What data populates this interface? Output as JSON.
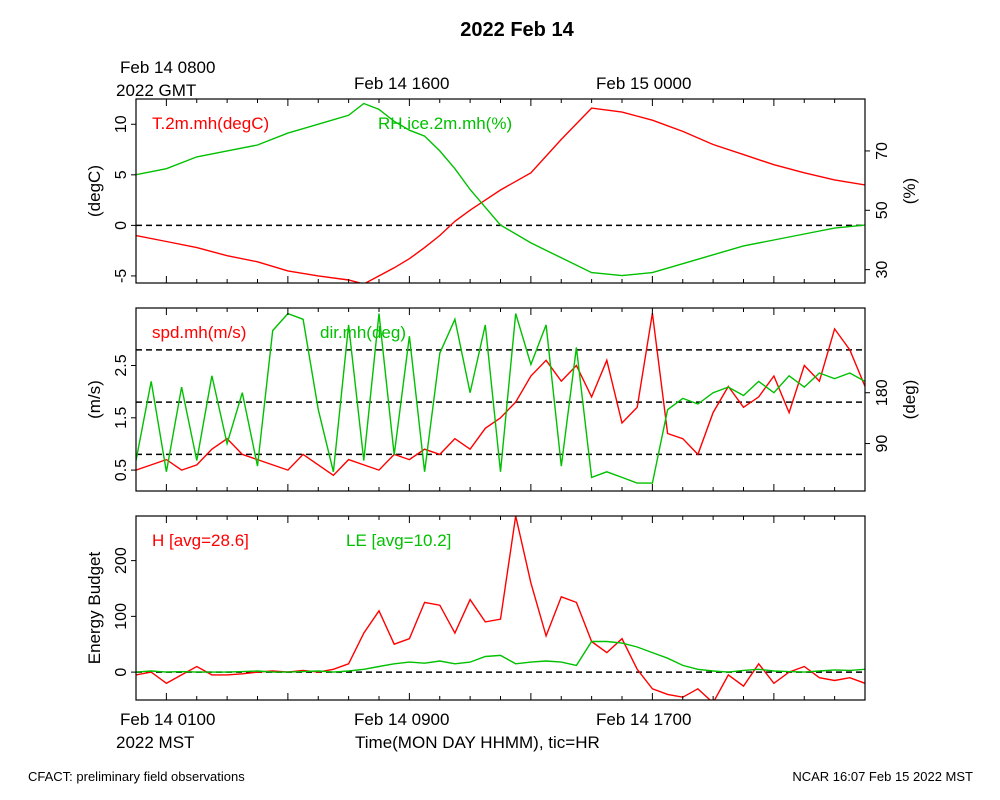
{
  "figure": {
    "title": "2022 Feb 14",
    "top_time_labels": [
      {
        "line1": "Feb 14 0800",
        "line2": "2022 GMT"
      },
      {
        "line1": "Feb 14 1600",
        "line2": ""
      },
      {
        "line1": "Feb 15 0000",
        "line2": ""
      }
    ],
    "bottom_time_labels": [
      {
        "line1": "Feb 14 0100",
        "line2": "2022 MST"
      },
      {
        "line1": "Feb 14 0900",
        "line2": ""
      },
      {
        "line1": "Feb 14 1700",
        "line2": ""
      }
    ],
    "xlabel": "Time(MON DAY HHMM), tic=HR",
    "footer_left": "CFACT: preliminary field observations",
    "footer_right": "NCAR 16:07 Feb 15 2022 MST",
    "colors": {
      "red": "#ff0000",
      "green": "#00c000",
      "black": "#000000"
    }
  },
  "chart_data": [
    {
      "type": "line",
      "xlim": [
        0,
        24
      ],
      "x_unit": "hours after Feb 14 0000 MST",
      "left_axis": {
        "label": "(degC)",
        "ylim": [
          -5.7,
          12.5
        ],
        "ticks": [
          -5,
          0,
          5,
          10
        ]
      },
      "right_axis": {
        "label": "(%)",
        "ylim": [
          25.5,
          87.5
        ],
        "ticks": [
          30,
          50,
          70
        ]
      },
      "reference_lines": [
        {
          "axis": "left",
          "value": 0
        }
      ],
      "series": [
        {
          "name": "T.2m.mh(degC)",
          "axis": "left",
          "color": "#ff0000",
          "x": [
            0,
            1,
            2,
            3,
            4,
            5,
            6,
            7,
            7.5,
            8,
            8.5,
            9,
            9.5,
            10,
            10.5,
            11,
            11.5,
            12,
            13,
            14,
            15,
            16,
            17,
            18,
            19,
            20,
            21,
            22,
            23,
            24
          ],
          "y": [
            -1,
            -1.6,
            -2.2,
            -3,
            -3.6,
            -4.5,
            -5,
            -5.4,
            -5.8,
            -5,
            -4.2,
            -3.3,
            -2.2,
            -1,
            0.4,
            1.5,
            2.5,
            3.5,
            5.2,
            8.5,
            11.6,
            11.2,
            10.4,
            9.3,
            8,
            7,
            6,
            5.2,
            4.5,
            4
          ]
        },
        {
          "name": "RH.ice.2m.mh(%)",
          "axis": "right",
          "color": "#00c000",
          "x": [
            0,
            1,
            2,
            3,
            4,
            5,
            6,
            7,
            7.5,
            8,
            8.5,
            9,
            9.5,
            10,
            10.5,
            11,
            11.5,
            12,
            13,
            14,
            15,
            16,
            17,
            18,
            19,
            20,
            21,
            22,
            23,
            24
          ],
          "y": [
            62,
            64,
            68,
            70,
            72,
            76,
            79,
            82,
            86,
            84,
            80,
            77,
            75,
            70,
            64,
            57,
            51,
            45,
            39,
            34,
            29,
            28,
            29,
            32,
            35,
            38,
            40,
            42,
            44,
            45
          ]
        }
      ]
    },
    {
      "type": "line",
      "xlim": [
        0,
        24
      ],
      "x_unit": "hours after Feb 14 0000 MST",
      "left_axis": {
        "label": "(m/s)",
        "ylim": [
          0.1,
          3.6
        ],
        "ticks": [
          0.5,
          1.5,
          2.5
        ]
      },
      "right_axis": {
        "label": "(deg)",
        "ylim": [
          6,
          330
        ],
        "ticks": [
          90,
          180
        ]
      },
      "reference_lines": [
        {
          "axis": "left",
          "value": 0.8
        },
        {
          "axis": "left",
          "value": 1.8
        },
        {
          "axis": "left",
          "value": 2.8
        }
      ],
      "series": [
        {
          "name": "spd.mh(m/s)",
          "axis": "left",
          "color": "#ff0000",
          "x": [
            0,
            0.5,
            1,
            1.5,
            2,
            2.5,
            3,
            3.5,
            4,
            4.5,
            5,
            5.5,
            6,
            6.5,
            7,
            7.5,
            8,
            8.5,
            9,
            9.5,
            10,
            10.5,
            11,
            11.5,
            12,
            12.5,
            13,
            13.5,
            14,
            14.5,
            15,
            15.5,
            16,
            16.5,
            17,
            17.5,
            18,
            18.5,
            19,
            19.5,
            20,
            20.5,
            21,
            21.5,
            22,
            22.5,
            23,
            23.5,
            24
          ],
          "y": [
            0.5,
            0.6,
            0.7,
            0.5,
            0.6,
            0.9,
            1.1,
            0.8,
            0.7,
            0.6,
            0.5,
            0.8,
            0.6,
            0.4,
            0.7,
            0.6,
            0.5,
            0.8,
            0.7,
            0.9,
            0.8,
            1.1,
            0.9,
            1.3,
            1.5,
            1.8,
            2.3,
            2.6,
            2.2,
            2.5,
            1.9,
            2.6,
            1.4,
            1.7,
            3.5,
            1.2,
            1.1,
            0.8,
            1.6,
            2.1,
            1.7,
            1.9,
            2.3,
            1.6,
            2.5,
            2.2,
            3.2,
            2.8,
            2.1
          ]
        },
        {
          "name": "dir.mh(deg)",
          "axis": "right",
          "color": "#00c000",
          "x": [
            0,
            0.5,
            1,
            1.5,
            2,
            2.5,
            3,
            3.5,
            4,
            4.5,
            5,
            5.5,
            6,
            6.5,
            7,
            7.5,
            8,
            8.5,
            9,
            9.5,
            10,
            10.5,
            11,
            11.5,
            12,
            12.5,
            13,
            13.5,
            14,
            14.5,
            15,
            15.5,
            16,
            16.5,
            17,
            17.5,
            18,
            18.5,
            19,
            19.5,
            20,
            20.5,
            21,
            21.5,
            22,
            22.5,
            23,
            23.5,
            24
          ],
          "y": [
            60,
            200,
            40,
            190,
            60,
            210,
            90,
            180,
            50,
            290,
            320,
            310,
            150,
            40,
            300,
            60,
            320,
            70,
            280,
            40,
            250,
            310,
            180,
            300,
            40,
            320,
            230,
            300,
            50,
            260,
            30,
            40,
            30,
            20,
            20,
            150,
            170,
            160,
            180,
            190,
            175,
            200,
            180,
            210,
            190,
            215,
            205,
            215,
            200
          ]
        }
      ]
    },
    {
      "type": "line",
      "xlim": [
        0,
        24
      ],
      "x_unit": "hours after Feb 14 0000 MST",
      "left_axis": {
        "label": "Energy Budget",
        "ylim": [
          -50,
          280
        ],
        "ticks": [
          0,
          100,
          200
        ]
      },
      "reference_lines": [
        {
          "axis": "left",
          "value": 0
        }
      ],
      "series": [
        {
          "name": "H [avg=28.6]",
          "axis": "left",
          "color": "#ff0000",
          "x": [
            0,
            0.5,
            1,
            1.5,
            2,
            2.5,
            3,
            3.5,
            4,
            4.5,
            5,
            5.5,
            6,
            6.5,
            7,
            7.5,
            8,
            8.5,
            9,
            9.5,
            10,
            10.5,
            11,
            11.5,
            12,
            12.5,
            13,
            13.5,
            14,
            14.5,
            15,
            15.5,
            16,
            16.5,
            17,
            17.5,
            18,
            18.5,
            19,
            19.5,
            20,
            20.5,
            21,
            21.5,
            22,
            22.5,
            23,
            23.5,
            24
          ],
          "y": [
            -5,
            0,
            -20,
            -5,
            10,
            -5,
            -5,
            -3,
            0,
            2,
            0,
            3,
            0,
            5,
            15,
            70,
            110,
            50,
            60,
            125,
            120,
            70,
            130,
            90,
            95,
            280,
            160,
            65,
            135,
            125,
            55,
            35,
            60,
            5,
            -30,
            -40,
            -45,
            -30,
            -55,
            -5,
            -25,
            15,
            -20,
            0,
            10,
            -10,
            -15,
            -10,
            -20
          ]
        },
        {
          "name": "LE [avg=10.2]",
          "axis": "left",
          "color": "#00c000",
          "x": [
            0,
            0.5,
            1,
            1.5,
            2,
            2.5,
            3,
            3.5,
            4,
            4.5,
            5,
            5.5,
            6,
            6.5,
            7,
            7.5,
            8,
            8.5,
            9,
            9.5,
            10,
            10.5,
            11,
            11.5,
            12,
            12.5,
            13,
            13.5,
            14,
            14.5,
            15,
            15.5,
            16,
            16.5,
            17,
            17.5,
            18,
            18.5,
            19,
            19.5,
            20,
            20.5,
            21,
            21.5,
            22,
            22.5,
            23,
            23.5,
            24
          ],
          "y": [
            0,
            2,
            0,
            1,
            0,
            0,
            0,
            1,
            2,
            0,
            0,
            1,
            2,
            0,
            2,
            5,
            10,
            15,
            18,
            16,
            20,
            15,
            18,
            28,
            30,
            15,
            18,
            20,
            18,
            12,
            55,
            55,
            52,
            45,
            35,
            25,
            12,
            5,
            2,
            0,
            3,
            5,
            2,
            1,
            0,
            2,
            4,
            3,
            5
          ]
        }
      ]
    }
  ]
}
